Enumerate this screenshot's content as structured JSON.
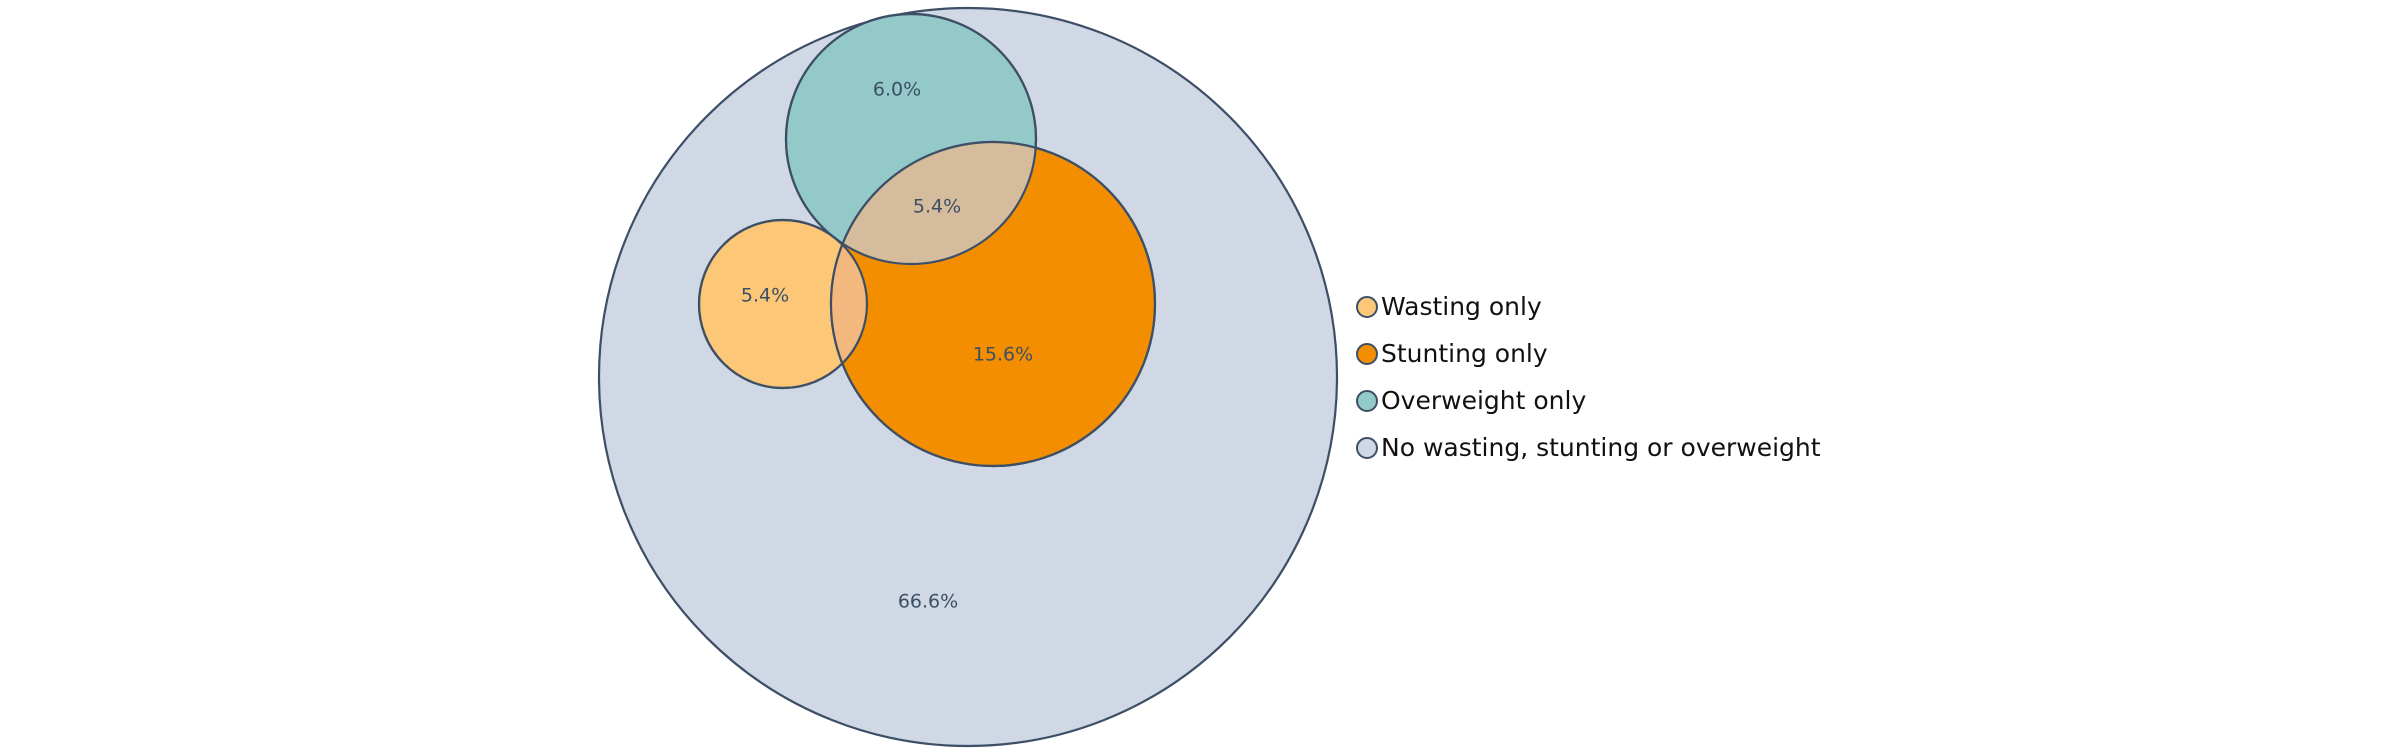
{
  "chart_data": {
    "type": "venn",
    "title": "",
    "sets": [
      {
        "key": "none",
        "name": "No wasting, stunting or overweight",
        "color": "#cfd8e4"
      },
      {
        "key": "overweight",
        "name": "Overweight only",
        "color": "#94c9c9"
      },
      {
        "key": "stunting",
        "name": "Stunting only",
        "color": "#f28e00"
      },
      {
        "key": "wasting",
        "name": "Wasting only",
        "color": "#fcc878"
      }
    ],
    "regions": [
      {
        "key": "overweight",
        "label": "6.0%",
        "value": 6.0
      },
      {
        "key": "overweight_stunting",
        "label": "5.4%",
        "value": 5.4
      },
      {
        "key": "wasting",
        "label": "5.4%",
        "value": 5.4
      },
      {
        "key": "stunting",
        "label": "15.6%",
        "value": 15.6
      },
      {
        "key": "none",
        "label": "66.6%",
        "value": 66.6
      }
    ],
    "overlap_colors": {
      "overweight_stunting": "#d5bc9c",
      "wasting_stunting": "#f3b87e"
    },
    "legend": {
      "position": "right",
      "items": [
        "Wasting only",
        "Stunting only",
        "Overweight only",
        "No wasting, stunting or overweight"
      ]
    }
  }
}
